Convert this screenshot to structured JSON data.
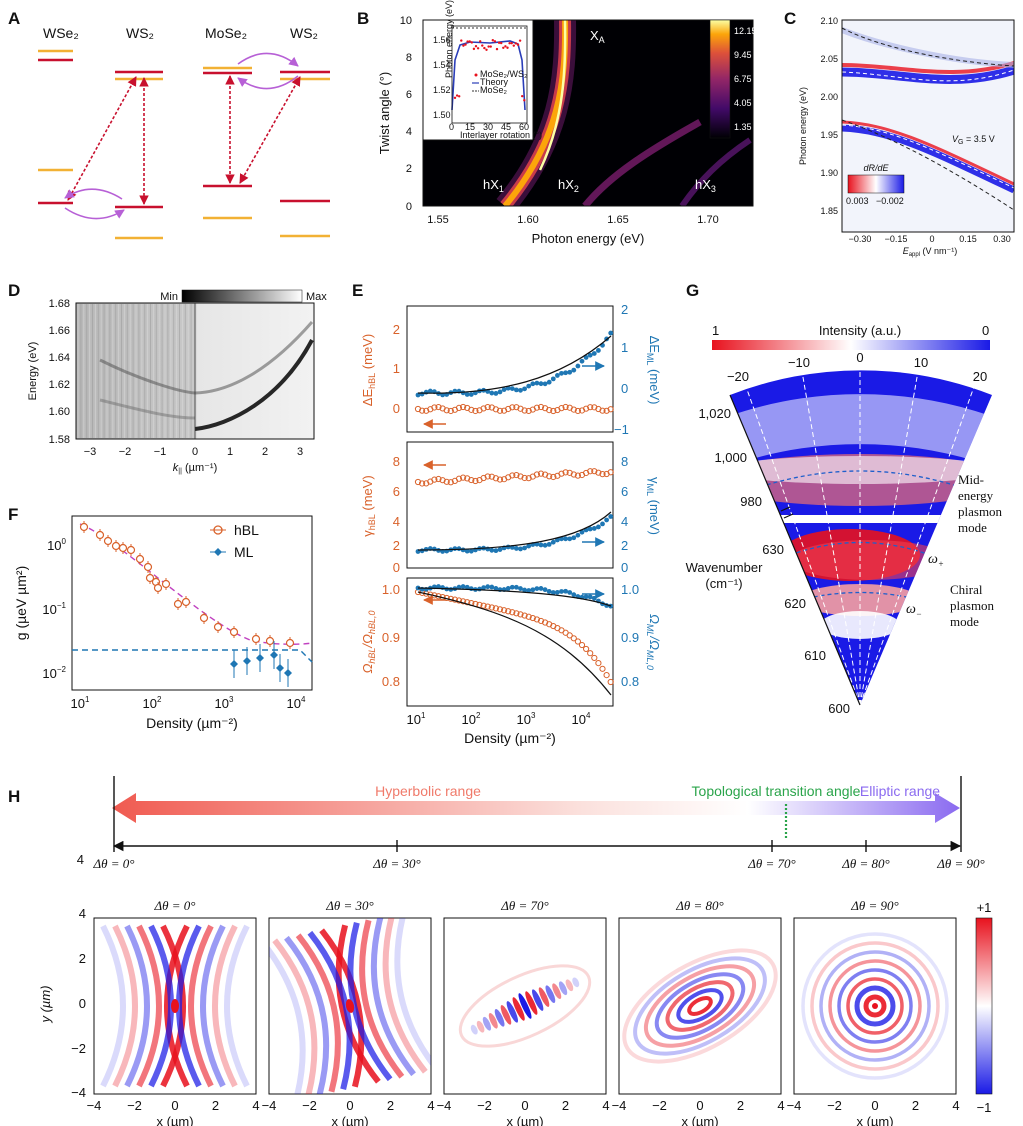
{
  "panel_letters": [
    "A",
    "B",
    "C",
    "D",
    "E",
    "F",
    "G",
    "H"
  ],
  "colors": {
    "red": "#c8102e",
    "orange": "#f2b134",
    "purple": "#b760d6",
    "hbl": "#d9622b",
    "ml": "#1f77b4",
    "diverging_red": "#e8121e",
    "diverging_blue": "#1a1ae6"
  },
  "panelA": {
    "labels": [
      "WSe₂",
      "WS₂",
      "MoSe₂",
      "WS₂"
    ]
  },
  "panelB": {
    "ylabel": "Twist angle (°)",
    "xlabel": "Photon energy (eV)",
    "xticks": [
      "1.55",
      "1.60",
      "1.65",
      "1.70"
    ],
    "yticks": [
      "0",
      "2",
      "4",
      "6",
      "8",
      "10"
    ],
    "labels": {
      "xa": "X",
      "xa_sub": "A",
      "hx1": "hX",
      "hx1_sub": "1",
      "hx2": "hX",
      "hx2_sub": "2",
      "hx3": "hX",
      "hx3_sub": "3"
    },
    "colorbar": [
      "12.15",
      "9.45",
      "6.75",
      "4.05",
      "1.35"
    ],
    "inset": {
      "ylabel": "Photon energy (eV)",
      "xlabel": "Interlayer rotation (°)",
      "yticks": [
        "1.56",
        "1.54",
        "1.52",
        "1.50"
      ],
      "xticks": [
        "0",
        "15",
        "30",
        "45",
        "60"
      ],
      "legend": [
        "MoSe₂/WS₂",
        "Theory",
        "MoSe₂"
      ]
    }
  },
  "panelC": {
    "ylabel": "Photon energy (eV)",
    "yticks": [
      "2.10",
      "2.05",
      "2.00",
      "1.95",
      "1.90",
      "1.85"
    ],
    "xticks": [
      "−0.30",
      "−0.15",
      "0",
      "0.15",
      "0.30"
    ],
    "xlabel": "E",
    "xlabel_sub": "appl",
    "xlabel_unit": " (V nm⁻¹)",
    "vg": "V",
    "vg_sub": "G",
    "vg_val": " = 3.5 V",
    "cbar_title": "dR/dE",
    "cbar_min": "0.003",
    "cbar_max": "−0.002"
  },
  "panelD": {
    "ylabel": "Energy (eV)",
    "yticks": [
      "1.68",
      "1.66",
      "1.64",
      "1.62",
      "1.60",
      "1.58"
    ],
    "xticks": [
      "−3",
      "−2",
      "−1",
      "0",
      "1",
      "2",
      "3"
    ],
    "xlabel": "k",
    "xlabel_sub": "||",
    "xlabel_unit": " (µm⁻¹)",
    "cbar_min": "Min",
    "cbar_max": "Max"
  },
  "panelE": {
    "xlabel": "Density (µm⁻²)",
    "xticks": [
      "10",
      "10",
      "10",
      "10"
    ],
    "xtick_exp": [
      "1",
      "2",
      "3",
      "4"
    ],
    "sub1": {
      "ylabel_left": "ΔE",
      "ylabel_left_sub": "hBL",
      "ylabel_left_unit": " (meV)",
      "ylabel_right": "ΔE",
      "ylabel_right_sub": "ML",
      "ylabel_right_unit": " (meV)",
      "left_ticks": [
        "0",
        "1",
        "2"
      ],
      "right_ticks": [
        "−1",
        "0",
        "1",
        "2"
      ]
    },
    "sub2": {
      "ylabel_left": "γ",
      "ylabel_left_sub": "hBL",
      "ylabel_left_unit": " (meV)",
      "ylabel_right": "γ",
      "ylabel_right_sub": "ML",
      "ylabel_right_unit": " (meV)",
      "left_ticks": [
        "0",
        "2",
        "4",
        "6",
        "8"
      ],
      "right_ticks": [
        "0",
        "2",
        "4",
        "6",
        "8"
      ]
    },
    "sub3": {
      "ylabel_left": "Ω",
      "ylabel_left_sub": "hBL",
      "ylabel_left_mid": "/Ω",
      "ylabel_left_sub2": "hBL,0",
      "ylabel_right": "Ω",
      "ylabel_right_sub": "ML",
      "ylabel_right_mid": "/Ω",
      "ylabel_right_sub2": "ML,0",
      "left_ticks": [
        "0.8",
        "0.9",
        "1.0"
      ],
      "right_ticks": [
        "0.8",
        "0.9",
        "1.0"
      ]
    }
  },
  "panelF": {
    "ylabel": "g (µeV µm²)",
    "xlabel": "Density (µm⁻²)",
    "xticks": [
      "10",
      "10",
      "10",
      "10"
    ],
    "xtick_exp": [
      "1",
      "2",
      "3",
      "4"
    ],
    "yticks": [
      "10",
      "10",
      "10"
    ],
    "ytick_exp": [
      "0",
      "−1",
      "−2"
    ],
    "legend": [
      "hBL",
      "ML"
    ]
  },
  "panelG": {
    "cbar_title": "Intensity (a.u.)",
    "cbar_left": "1",
    "cbar_right": "0",
    "angle_ticks": [
      "−20",
      "−10",
      "0",
      "10",
      "20"
    ],
    "wn_ticks": [
      "1,020",
      "1,000",
      "980",
      "630",
      "620",
      "610",
      "600"
    ],
    "ylabel": [
      "Wavenumber",
      "(cm⁻¹)"
    ],
    "mode1": [
      "Mid-",
      "energy",
      "plasmon",
      "mode"
    ],
    "mode2": [
      "Chiral",
      "plasmon",
      "mode"
    ],
    "omega_plus": "ω",
    "omega_plus_sub": "+",
    "omega_minus": "ω",
    "omega_minus_sub": "−"
  },
  "panelH": {
    "hyperbolic": "Hyperbolic range",
    "transition": "Topological transition angle",
    "elliptic": "Elliptic range",
    "axis_ticks": [
      "Δθ = 0°",
      "Δθ = 30°",
      "Δθ = 70°",
      "Δθ = 80°",
      "Δθ = 90°"
    ],
    "subplot_titles": [
      "Δθ = 0°",
      "Δθ = 30°",
      "Δθ = 70°",
      "Δθ = 80°",
      "Δθ = 90°"
    ],
    "xticks": [
      "−4",
      "−2",
      "0",
      "2",
      "4"
    ],
    "yticks": [
      "4",
      "2",
      "0",
      "−2",
      "−4"
    ],
    "xlabel": "x (µm)",
    "ylabel": "y (µm)",
    "cbar_max": "+1",
    "cbar_min": "−1"
  }
}
